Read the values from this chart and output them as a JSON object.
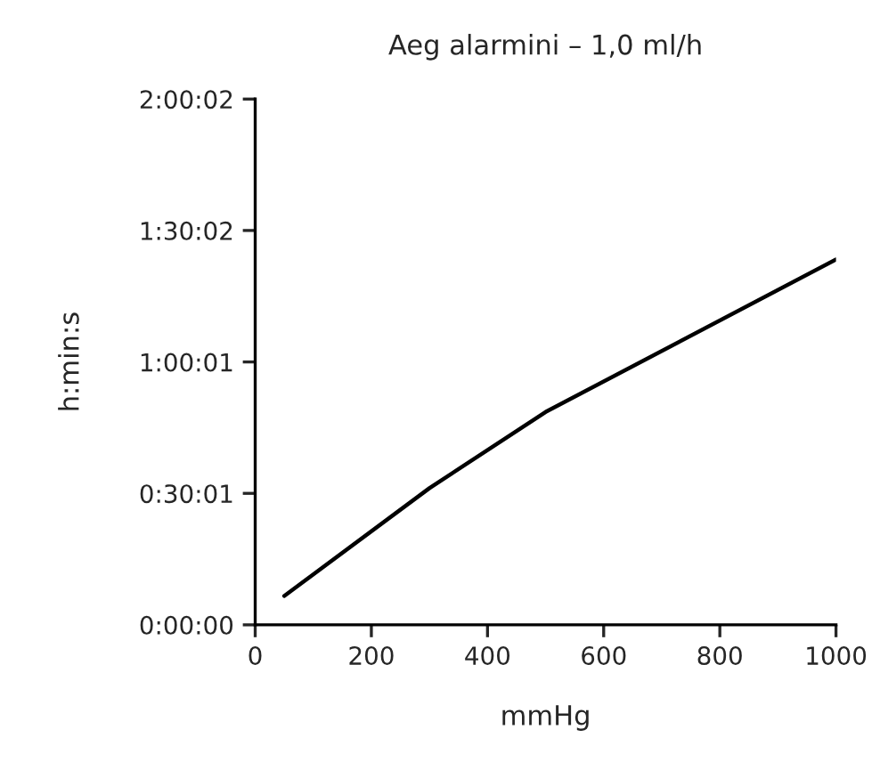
{
  "chart_data": {
    "type": "line",
    "title": "Aeg alarmini – 1,0 ml/h",
    "xlabel": "mmHg",
    "ylabel": "h:min:s",
    "x": [
      50,
      300,
      500,
      1000
    ],
    "series": [
      {
        "color": "#000000",
        "values": [
          0.11,
          0.52,
          0.81,
          1.39
        ]
      }
    ],
    "xlim": [
      0,
      1000
    ],
    "xticks": [
      0,
      200,
      400,
      600,
      800,
      1000
    ],
    "ylim": [
      0,
      2.0006
    ],
    "yticks": [
      {
        "value": 0,
        "label": "0:00:00"
      },
      {
        "value": 0.5003,
        "label": "0:30:01"
      },
      {
        "value": 1.0003,
        "label": "1:00:01"
      },
      {
        "value": 1.5006,
        "label": "1:30:02"
      },
      {
        "value": 2.0006,
        "label": "2:00:02"
      }
    ],
    "grid": false,
    "marker": "none",
    "line_style": "solid"
  }
}
